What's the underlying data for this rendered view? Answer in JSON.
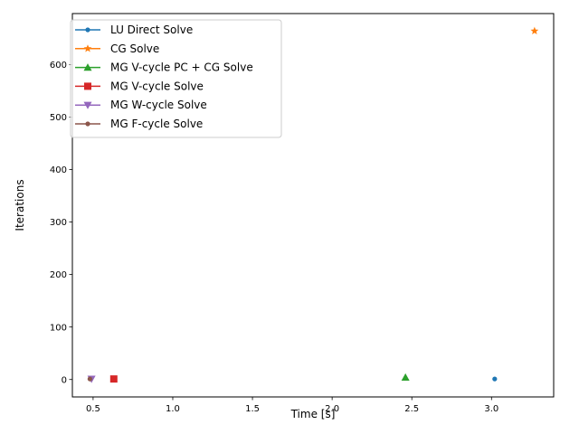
{
  "chart_data": {
    "type": "scatter",
    "xlabel": "Time [s]",
    "ylabel": "Iterations",
    "xlim": [
      0.37,
      3.39
    ],
    "ylim": [
      -33.2,
      697.2
    ],
    "xticks": [
      0.5,
      1.0,
      1.5,
      2.0,
      2.5,
      3.0
    ],
    "xtick_labels": [
      "0.5",
      "1.0",
      "1.5",
      "2.0",
      "2.5",
      "3.0"
    ],
    "yticks": [
      0,
      100,
      200,
      300,
      400,
      500,
      600
    ],
    "ytick_labels": [
      "0",
      "100",
      "200",
      "300",
      "400",
      "500",
      "600"
    ],
    "grid": false,
    "legend_position": "upper-left",
    "series": [
      {
        "name": "LU Direct Solve",
        "color": "#1f77b4",
        "marker": "point",
        "x": [
          3.02
        ],
        "y": [
          1
        ]
      },
      {
        "name": "CG Solve",
        "color": "#ff7f0e",
        "marker": "star",
        "x": [
          3.27
        ],
        "y": [
          664
        ]
      },
      {
        "name": "MG V-cycle PC + CG Solve",
        "color": "#2ca02c",
        "marker": "triangle-up",
        "x": [
          2.46
        ],
        "y": [
          4
        ]
      },
      {
        "name": "MG V-cycle Solve",
        "color": "#d62728",
        "marker": "square",
        "x": [
          0.63
        ],
        "y": [
          1
        ]
      },
      {
        "name": "MG W-cycle Solve",
        "color": "#9467bd",
        "marker": "triangle-down",
        "x": [
          0.49
        ],
        "y": [
          1
        ]
      },
      {
        "name": "MG F-cycle Solve",
        "color": "#8c564b",
        "marker": "point",
        "x": [
          0.48
        ],
        "y": [
          1
        ]
      }
    ]
  }
}
